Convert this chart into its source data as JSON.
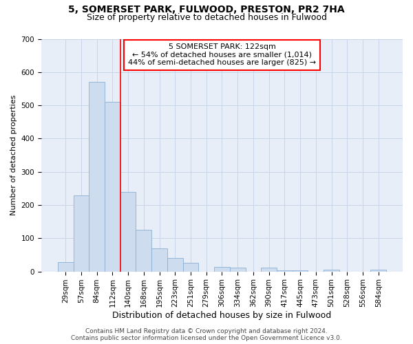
{
  "title_line1": "5, SOMERSET PARK, FULWOOD, PRESTON, PR2 7HA",
  "title_line2": "Size of property relative to detached houses in Fulwood",
  "xlabel": "Distribution of detached houses by size in Fulwood",
  "ylabel": "Number of detached properties",
  "categories": [
    "29sqm",
    "57sqm",
    "84sqm",
    "112sqm",
    "140sqm",
    "168sqm",
    "195sqm",
    "223sqm",
    "251sqm",
    "279sqm",
    "306sqm",
    "334sqm",
    "362sqm",
    "390sqm",
    "417sqm",
    "445sqm",
    "473sqm",
    "501sqm",
    "528sqm",
    "556sqm",
    "584sqm"
  ],
  "values": [
    28,
    230,
    570,
    510,
    240,
    125,
    70,
    40,
    27,
    0,
    14,
    12,
    0,
    12,
    4,
    4,
    0,
    6,
    0,
    0,
    6
  ],
  "bar_color": "#cddcef",
  "bar_edge_color": "#8aafd4",
  "vline_position": 3.5,
  "vline_color": "red",
  "annotation_line1": "5 SOMERSET PARK: 122sqm",
  "annotation_line2": "← 54% of detached houses are smaller (1,014)",
  "annotation_line3": "44% of semi-detached houses are larger (825) →",
  "annotation_box_color": "white",
  "annotation_box_edge": "red",
  "ylim": [
    0,
    700
  ],
  "yticks": [
    0,
    100,
    200,
    300,
    400,
    500,
    600,
    700
  ],
  "grid_color": "#c8d4e8",
  "background_color": "#e8eef8",
  "footer_line1": "Contains HM Land Registry data © Crown copyright and database right 2024.",
  "footer_line2": "Contains public sector information licensed under the Open Government Licence v3.0.",
  "title_fontsize": 10,
  "subtitle_fontsize": 9,
  "ylabel_fontsize": 8,
  "xlabel_fontsize": 9,
  "tick_fontsize": 7.5,
  "annotation_fontsize": 8,
  "footer_fontsize": 6.5
}
